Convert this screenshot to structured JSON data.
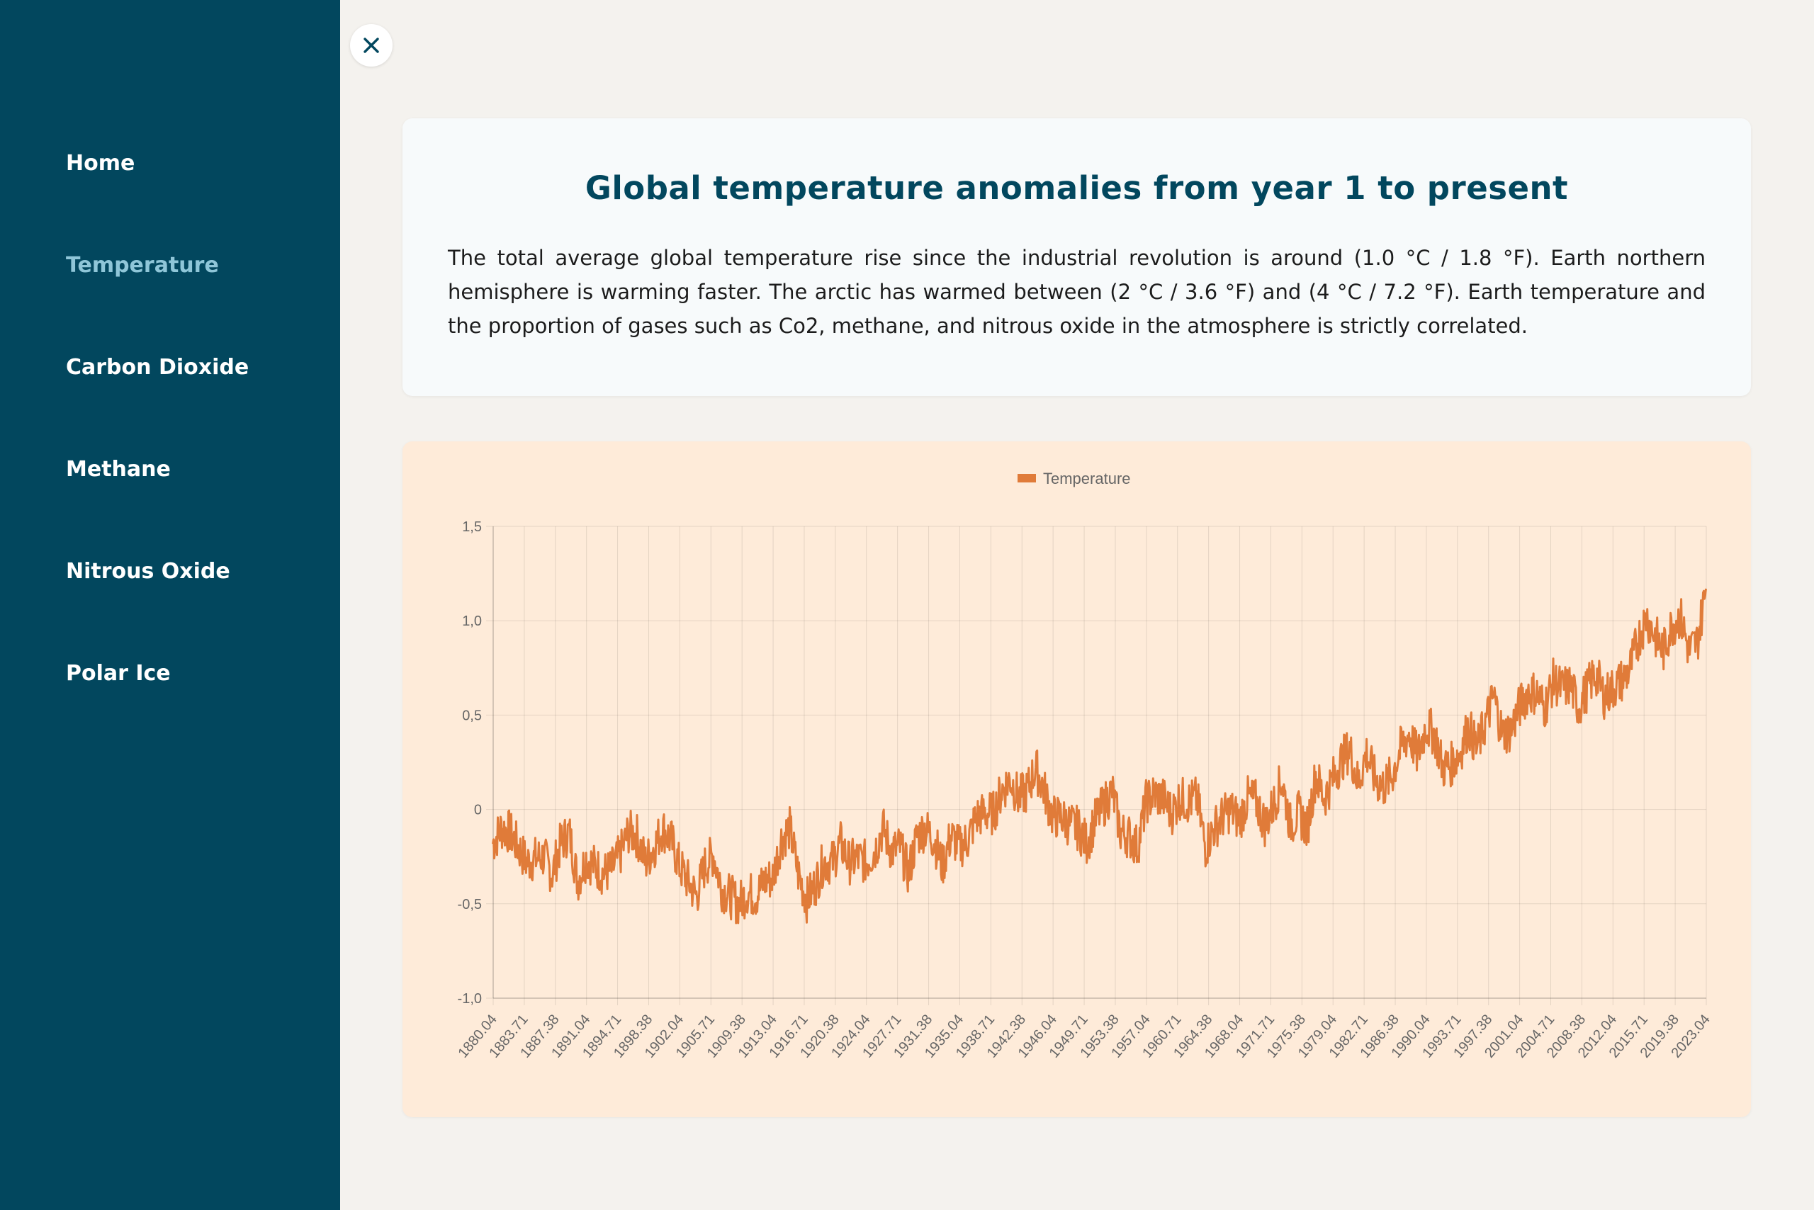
{
  "sidebar": {
    "items": [
      {
        "label": "Home",
        "active": false
      },
      {
        "label": "Temperature",
        "active": true
      },
      {
        "label": "Carbon Dioxide",
        "active": false
      },
      {
        "label": "Methane",
        "active": false
      },
      {
        "label": "Nitrous Oxide",
        "active": false
      },
      {
        "label": "Polar Ice",
        "active": false
      }
    ]
  },
  "close_button": {
    "icon": "close-icon"
  },
  "info": {
    "title": "Global temperature anomalies from year 1 to present",
    "text": "The total average global temperature rise since the industrial revolution is around (1.0 °C / 1.8 °F). Earth northern hemisphere is warming faster. The arctic has warmed between (2 °C / 3.6 °F) and (4 °C / 7.2 °F). Earth temperature and the proportion of gases such as Co2, methane, and nitrous oxide in the atmosphere is strictly correlated."
  },
  "colors": {
    "sidebar_bg": "#02475e",
    "sidebar_active": "#8fc6d8",
    "title": "#02475e",
    "chart_card_bg": "#feebd9",
    "series": "#e07b39"
  },
  "chart_data": {
    "type": "line",
    "title": "",
    "xlabel": "",
    "ylabel": "",
    "legend": {
      "position": "top",
      "entries": [
        "Temperature"
      ]
    },
    "grid": true,
    "ylim": [
      -1.0,
      1.5
    ],
    "y_ticks": [
      "-1,0",
      "-0,5",
      "0",
      "0,5",
      "1,0",
      "1,5"
    ],
    "x_tick_labels": [
      "1880.04",
      "1883.71",
      "1887.38",
      "1891.04",
      "1894.71",
      "1898.38",
      "1902.04",
      "1905.71",
      "1909.38",
      "1913.04",
      "1916.71",
      "1920.38",
      "1924.04",
      "1927.71",
      "1931.38",
      "1935.04",
      "1938.71",
      "1942.38",
      "1946.04",
      "1949.71",
      "1953.38",
      "1957.04",
      "1960.71",
      "1964.38",
      "1968.04",
      "1971.71",
      "1975.38",
      "1979.04",
      "1982.71",
      "1986.38",
      "1990.04",
      "1993.71",
      "1997.38",
      "2001.04",
      "2004.71",
      "2008.38",
      "2012.04",
      "2015.71",
      "2019.38",
      "2023.04"
    ],
    "x_range": [
      1880.04,
      2023.04
    ],
    "series": [
      {
        "name": "Temperature",
        "color": "#e07b39",
        "x": [
          1880,
          1881,
          1882,
          1883,
          1884,
          1885,
          1886,
          1887,
          1888,
          1889,
          1890,
          1891,
          1892,
          1893,
          1894,
          1895,
          1896,
          1897,
          1898,
          1899,
          1900,
          1901,
          1902,
          1903,
          1904,
          1905,
          1906,
          1907,
          1908,
          1909,
          1910,
          1911,
          1912,
          1913,
          1914,
          1915,
          1916,
          1917,
          1918,
          1919,
          1920,
          1921,
          1922,
          1923,
          1924,
          1925,
          1926,
          1927,
          1928,
          1929,
          1930,
          1931,
          1932,
          1933,
          1934,
          1935,
          1936,
          1937,
          1938,
          1939,
          1940,
          1941,
          1942,
          1943,
          1944,
          1945,
          1946,
          1947,
          1948,
          1949,
          1950,
          1951,
          1952,
          1953,
          1954,
          1955,
          1956,
          1957,
          1958,
          1959,
          1960,
          1961,
          1962,
          1963,
          1964,
          1965,
          1966,
          1967,
          1968,
          1969,
          1970,
          1971,
          1972,
          1973,
          1974,
          1975,
          1976,
          1977,
          1978,
          1979,
          1980,
          1981,
          1982,
          1983,
          1984,
          1985,
          1986,
          1987,
          1988,
          1989,
          1990,
          1991,
          1992,
          1993,
          1994,
          1995,
          1996,
          1997,
          1998,
          1999,
          2000,
          2001,
          2002,
          2003,
          2004,
          2005,
          2006,
          2007,
          2008,
          2009,
          2010,
          2011,
          2012,
          2013,
          2014,
          2015,
          2016,
          2017,
          2018,
          2019,
          2020,
          2021,
          2022,
          2023
        ],
        "values": [
          -0.18,
          -0.1,
          -0.12,
          -0.2,
          -0.28,
          -0.26,
          -0.25,
          -0.34,
          -0.18,
          -0.12,
          -0.38,
          -0.26,
          -0.3,
          -0.34,
          -0.32,
          -0.24,
          -0.12,
          -0.14,
          -0.28,
          -0.2,
          -0.1,
          -0.16,
          -0.3,
          -0.38,
          -0.46,
          -0.3,
          -0.24,
          -0.42,
          -0.46,
          -0.5,
          -0.44,
          -0.46,
          -0.38,
          -0.36,
          -0.16,
          -0.1,
          -0.34,
          -0.48,
          -0.4,
          -0.28,
          -0.28,
          -0.18,
          -0.28,
          -0.26,
          -0.28,
          -0.22,
          -0.1,
          -0.22,
          -0.2,
          -0.34,
          -0.14,
          -0.1,
          -0.16,
          -0.3,
          -0.14,
          -0.2,
          -0.16,
          -0.04,
          -0.02,
          -0.02,
          0.1,
          0.16,
          0.06,
          0.1,
          0.22,
          0.1,
          -0.04,
          -0.04,
          -0.08,
          -0.1,
          -0.18,
          -0.06,
          0.02,
          0.1,
          -0.12,
          -0.14,
          -0.2,
          0.04,
          0.08,
          0.06,
          -0.02,
          0.06,
          0.04,
          0.06,
          -0.2,
          -0.1,
          -0.04,
          0.0,
          -0.06,
          0.06,
          0.04,
          -0.08,
          0.02,
          0.16,
          -0.08,
          -0.02,
          -0.1,
          0.18,
          0.06,
          0.16,
          0.26,
          0.32,
          0.14,
          0.3,
          0.16,
          0.12,
          0.18,
          0.32,
          0.4,
          0.28,
          0.44,
          0.4,
          0.22,
          0.24,
          0.3,
          0.44,
          0.32,
          0.46,
          0.6,
          0.4,
          0.42,
          0.54,
          0.62,
          0.62,
          0.54,
          0.68,
          0.64,
          0.66,
          0.54,
          0.64,
          0.72,
          0.6,
          0.64,
          0.68,
          0.74,
          0.9,
          1.02,
          0.92,
          0.84,
          0.98,
          1.02,
          0.84,
          0.89,
          1.17
        ]
      }
    ]
  }
}
